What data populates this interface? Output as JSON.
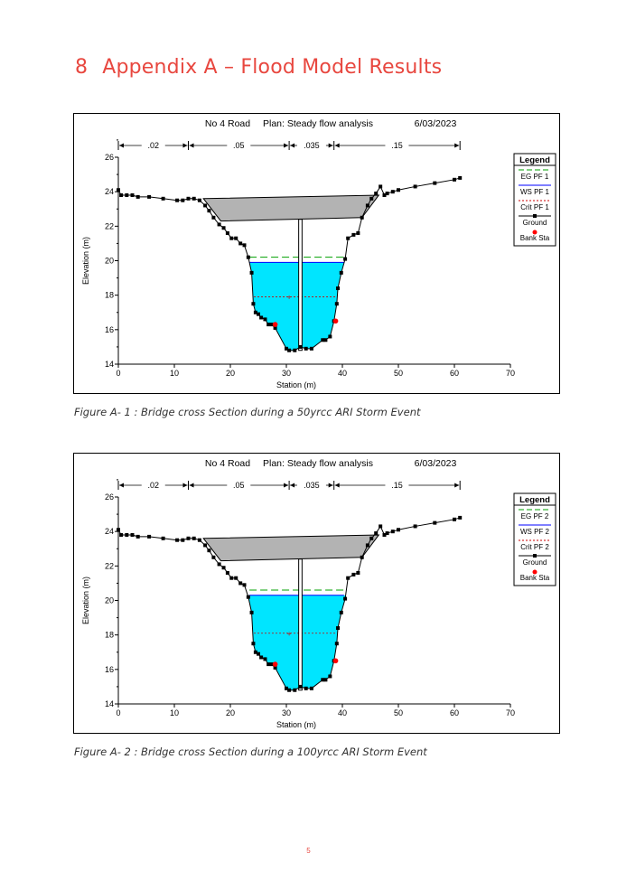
{
  "heading": {
    "number": "8",
    "title": "Appendix A – Flood Model Results"
  },
  "page_number": "5",
  "colors": {
    "heading": "#e8473f",
    "water": "#00e5ff",
    "deck": "#b3b3b3",
    "eg_line": "#00a000",
    "ws_line": "#0000ff",
    "crit_line": "#cc0000",
    "bank_sta": "#ff0000"
  },
  "figures": [
    {
      "caption": "Figure A- 1 : Bridge cross Section during a 50yrcc ARI Storm Event",
      "chart_data": {
        "type": "line",
        "title_parts": [
          "No 4 Road",
          "Plan: Steady flow analysis",
          "6/03/2023"
        ],
        "xlabel": "Station (m)",
        "ylabel": "Elevation (m)",
        "xlim": [
          0,
          70
        ],
        "ylim": [
          14,
          26
        ],
        "xticks": [
          "0",
          "10",
          "20",
          "30",
          "40",
          "50",
          "60",
          "70"
        ],
        "yticks": [
          "14",
          "16",
          "18",
          "20",
          "22",
          "24",
          "26"
        ],
        "legend_title": "Legend",
        "legend": [
          "EG PF 1",
          "WS PF 1",
          "Crit PF 1",
          "Ground",
          "Bank Sta"
        ],
        "mannings": [
          {
            "label": ".02",
            "from": 0,
            "to": 12.5
          },
          {
            "label": ".05",
            "from": 12.5,
            "to": 30.5
          },
          {
            "label": ".035",
            "from": 30.5,
            "to": 38.5
          },
          {
            "label": ".15",
            "from": 38.5,
            "to": 61
          }
        ],
        "ground": [
          [
            0,
            24.1
          ],
          [
            0.5,
            23.8
          ],
          [
            1.5,
            23.8
          ],
          [
            2.5,
            23.8
          ],
          [
            3.5,
            23.7
          ],
          [
            5.5,
            23.7
          ],
          [
            8,
            23.6
          ],
          [
            10.5,
            23.5
          ],
          [
            11.5,
            23.5
          ],
          [
            12.5,
            23.6
          ],
          [
            13.5,
            23.6
          ],
          [
            14.5,
            23.5
          ],
          [
            15.5,
            23.2
          ],
          [
            16.2,
            22.9
          ],
          [
            17,
            22.5
          ],
          [
            18,
            22.1
          ],
          [
            18.8,
            21.9
          ],
          [
            19.5,
            21.6
          ],
          [
            20.2,
            21.3
          ],
          [
            21,
            21.3
          ],
          [
            21.8,
            21
          ],
          [
            22.5,
            20.9
          ],
          [
            23.2,
            20.2
          ],
          [
            23.8,
            19.3
          ],
          [
            24.1,
            17.5
          ],
          [
            24.5,
            17
          ],
          [
            25,
            16.9
          ],
          [
            25.5,
            16.7
          ],
          [
            26.2,
            16.6
          ],
          [
            26.8,
            16.3
          ],
          [
            27.4,
            16.3
          ],
          [
            28,
            16.1
          ],
          [
            30,
            14.9
          ],
          [
            30.5,
            14.8
          ],
          [
            31.5,
            14.8
          ],
          [
            32.5,
            15
          ],
          [
            33.5,
            14.9
          ],
          [
            34.5,
            14.9
          ],
          [
            36.5,
            15.4
          ],
          [
            37,
            15.4
          ],
          [
            37.8,
            15.6
          ],
          [
            38.5,
            16.5
          ],
          [
            39,
            17.5
          ],
          [
            39.2,
            18.4
          ],
          [
            39.8,
            19.3
          ],
          [
            40.5,
            20.1
          ],
          [
            41,
            21.3
          ],
          [
            42,
            21.5
          ],
          [
            42.8,
            21.6
          ],
          [
            43.5,
            22.5
          ],
          [
            44.5,
            23.2
          ],
          [
            45.2,
            23.6
          ],
          [
            46,
            23.9
          ],
          [
            46.8,
            24.3
          ],
          [
            47.5,
            23.8
          ],
          [
            48,
            23.9
          ],
          [
            49,
            24
          ],
          [
            50,
            24.1
          ],
          [
            53,
            24.3
          ],
          [
            56.5,
            24.5
          ],
          [
            60,
            24.7
          ],
          [
            61,
            24.8
          ]
        ],
        "bank_stations": [
          [
            28,
            16.3
          ],
          [
            38.8,
            16.5
          ]
        ],
        "bridge_deck": {
          "left": 15.2,
          "right": 46.5,
          "top_left": 23.6,
          "top_right": 23.8,
          "low_left": 22.3,
          "low_right": 22.5,
          "low_start": 18.3,
          "low_end": 43.5
        },
        "pier": {
          "station": 32.5,
          "width": 0.6
        },
        "eg_elev": 20.2,
        "ws_elev": 19.9,
        "crit_elev": 17.9
      }
    },
    {
      "caption": "Figure A- 2 : Bridge cross Section during a 100yrcc ARI Storm Event",
      "chart_data": {
        "type": "line",
        "title_parts": [
          "No 4 Road",
          "Plan: Steady flow analysis",
          "6/03/2023"
        ],
        "xlabel": "Station (m)",
        "ylabel": "Elevation (m)",
        "xlim": [
          0,
          70
        ],
        "ylim": [
          14,
          26
        ],
        "xticks": [
          "0",
          "10",
          "20",
          "30",
          "40",
          "50",
          "60",
          "70"
        ],
        "yticks": [
          "14",
          "16",
          "18",
          "20",
          "22",
          "24",
          "26"
        ],
        "legend_title": "Legend",
        "legend": [
          "EG PF 2",
          "WS PF 2",
          "Crit PF 2",
          "Ground",
          "Bank Sta"
        ],
        "mannings": [
          {
            "label": ".02",
            "from": 0,
            "to": 12.5
          },
          {
            "label": ".05",
            "from": 12.5,
            "to": 30.5
          },
          {
            "label": ".035",
            "from": 30.5,
            "to": 38.5
          },
          {
            "label": ".15",
            "from": 38.5,
            "to": 61
          }
        ],
        "ground": [
          [
            0,
            24.1
          ],
          [
            0.5,
            23.8
          ],
          [
            1.5,
            23.8
          ],
          [
            2.5,
            23.8
          ],
          [
            3.5,
            23.7
          ],
          [
            5.5,
            23.7
          ],
          [
            8,
            23.6
          ],
          [
            10.5,
            23.5
          ],
          [
            11.5,
            23.5
          ],
          [
            12.5,
            23.6
          ],
          [
            13.5,
            23.6
          ],
          [
            14.5,
            23.5
          ],
          [
            15.5,
            23.2
          ],
          [
            16.2,
            22.9
          ],
          [
            17,
            22.5
          ],
          [
            18,
            22.1
          ],
          [
            18.8,
            21.9
          ],
          [
            19.5,
            21.6
          ],
          [
            20.2,
            21.3
          ],
          [
            21,
            21.3
          ],
          [
            21.8,
            21
          ],
          [
            22.5,
            20.9
          ],
          [
            23.2,
            20.2
          ],
          [
            23.8,
            19.3
          ],
          [
            24.1,
            17.5
          ],
          [
            24.5,
            17
          ],
          [
            25,
            16.9
          ],
          [
            25.5,
            16.7
          ],
          [
            26.2,
            16.6
          ],
          [
            26.8,
            16.3
          ],
          [
            27.4,
            16.3
          ],
          [
            28,
            16.1
          ],
          [
            30,
            14.9
          ],
          [
            30.5,
            14.8
          ],
          [
            31.5,
            14.8
          ],
          [
            32.5,
            15
          ],
          [
            33.5,
            14.9
          ],
          [
            34.5,
            14.9
          ],
          [
            36.5,
            15.4
          ],
          [
            37,
            15.4
          ],
          [
            37.8,
            15.6
          ],
          [
            38.5,
            16.5
          ],
          [
            39,
            17.5
          ],
          [
            39.2,
            18.4
          ],
          [
            39.8,
            19.3
          ],
          [
            40.5,
            20.1
          ],
          [
            41,
            21.3
          ],
          [
            42,
            21.5
          ],
          [
            42.8,
            21.6
          ],
          [
            43.5,
            22.5
          ],
          [
            44.5,
            23.2
          ],
          [
            45.2,
            23.6
          ],
          [
            46,
            23.9
          ],
          [
            46.8,
            24.3
          ],
          [
            47.5,
            23.8
          ],
          [
            48,
            23.9
          ],
          [
            49,
            24
          ],
          [
            50,
            24.1
          ],
          [
            53,
            24.3
          ],
          [
            56.5,
            24.5
          ],
          [
            60,
            24.7
          ],
          [
            61,
            24.8
          ]
        ],
        "bank_stations": [
          [
            28,
            16.3
          ],
          [
            38.8,
            16.5
          ]
        ],
        "bridge_deck": {
          "left": 15.2,
          "right": 46.5,
          "top_left": 23.6,
          "top_right": 23.8,
          "low_left": 22.3,
          "low_right": 22.5,
          "low_start": 18.3,
          "low_end": 43.5
        },
        "pier": {
          "station": 32.5,
          "width": 0.6
        },
        "eg_elev": 20.6,
        "ws_elev": 20.3,
        "crit_elev": 18.1
      }
    }
  ]
}
